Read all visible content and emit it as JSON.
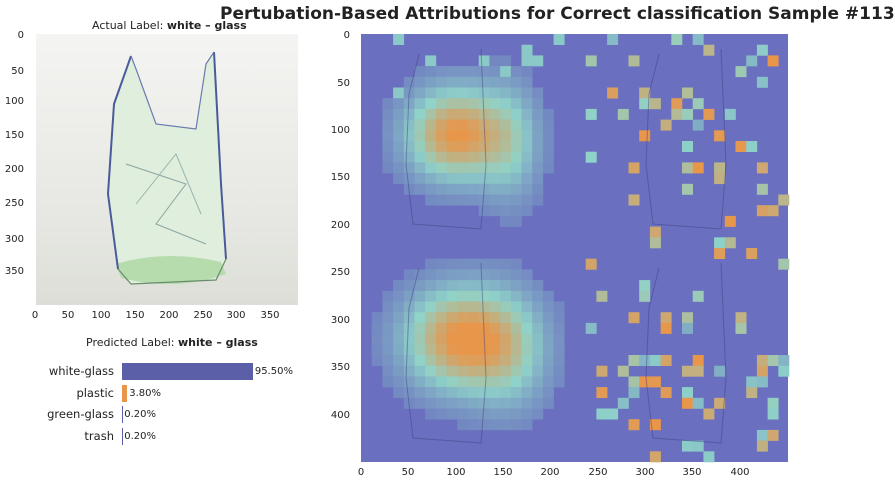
{
  "title": "Pertubation-Based Attributions for Correct classification Sample #113",
  "actual_panel": {
    "label_prefix": "Actual Label: ",
    "label_value": "white – glass",
    "y_ticks": [
      "0",
      "50",
      "100",
      "150",
      "200",
      "250",
      "300",
      "350"
    ],
    "x_ticks": [
      "0",
      "50",
      "100",
      "150",
      "200",
      "250",
      "300",
      "350"
    ]
  },
  "predicted_panel": {
    "label_prefix": "Predicted Label: ",
    "label_value": "white – glass"
  },
  "attribution_panel": {
    "y_ticks": [
      "0",
      "50",
      "100",
      "150",
      "200",
      "250",
      "300",
      "350",
      "400"
    ],
    "x_ticks": [
      "0",
      "50",
      "100",
      "150",
      "200",
      "250",
      "300",
      "350",
      "400"
    ]
  },
  "colors": {
    "white_glass_bar": "#5b5fa8",
    "plastic_bar": "#e8964a",
    "heat_low": "#6a6fbf",
    "heat_mid": "#8fd3c9",
    "heat_high": "#e8964a"
  },
  "chart_data": {
    "type": "bar",
    "orientation": "horizontal",
    "categories": [
      "white-glass",
      "plastic",
      "green-glass",
      "trash"
    ],
    "values": [
      95.5,
      3.8,
      0.2,
      0.2
    ],
    "value_labels": [
      "95.50%",
      "3.80%",
      "0.20%",
      "0.20%"
    ],
    "xlim": [
      0,
      100
    ]
  }
}
